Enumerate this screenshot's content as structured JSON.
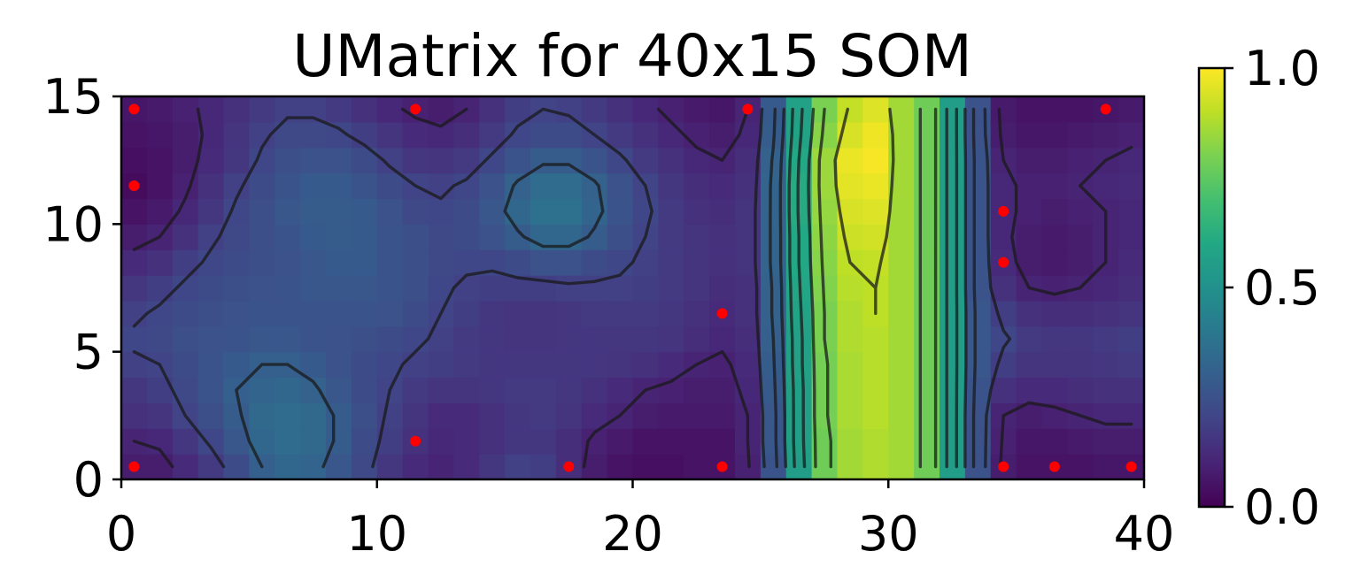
{
  "chart_data": {
    "type": "heatmap",
    "title": "UMatrix for 40x15 SOM",
    "xlabel": "",
    "ylabel": "",
    "grid_shape": [
      15,
      40
    ],
    "xlim": [
      0,
      40
    ],
    "ylim": [
      0,
      15
    ],
    "xticks": [
      0,
      10,
      20,
      30,
      40
    ],
    "yticks": [
      0,
      5,
      10,
      15
    ],
    "colorbar": {
      "ticks": [
        "0.0",
        "0.5",
        "1.0"
      ],
      "vmin": 0,
      "vmax": 1,
      "colormap": "viridis"
    },
    "grid": false,
    "contours": true,
    "marker_color": "#ff0000",
    "markers": [
      {
        "x": 0.5,
        "y": 14.5
      },
      {
        "x": 11.5,
        "y": 14.5
      },
      {
        "x": 24.5,
        "y": 14.5
      },
      {
        "x": 38.5,
        "y": 14.5
      },
      {
        "x": 0.5,
        "y": 11.5
      },
      {
        "x": 34.5,
        "y": 10.5
      },
      {
        "x": 34.5,
        "y": 8.5
      },
      {
        "x": 23.5,
        "y": 6.5
      },
      {
        "x": 11.5,
        "y": 1.5
      },
      {
        "x": 0.5,
        "y": 0.5
      },
      {
        "x": 17.5,
        "y": 0.5
      },
      {
        "x": 23.5,
        "y": 0.5
      },
      {
        "x": 34.5,
        "y": 0.5
      },
      {
        "x": 36.5,
        "y": 0.5
      },
      {
        "x": 39.5,
        "y": 0.5
      }
    ],
    "values": [
      [
        0.08,
        0.08,
        0.12,
        0.17,
        0.23,
        0.3,
        0.33,
        0.32,
        0.27,
        0.22,
        0.16,
        0.12,
        0.1,
        0.12,
        0.16,
        0.19,
        0.18,
        0.13,
        0.08,
        0.05,
        0.04,
        0.04,
        0.05,
        0.05,
        0.09,
        0.26,
        0.55,
        0.78,
        0.86,
        0.88,
        0.86,
        0.78,
        0.55,
        0.25,
        0.08,
        0.05,
        0.05,
        0.05,
        0.06,
        0.06
      ],
      [
        0.1,
        0.11,
        0.16,
        0.21,
        0.27,
        0.33,
        0.35,
        0.34,
        0.29,
        0.23,
        0.18,
        0.14,
        0.11,
        0.12,
        0.14,
        0.16,
        0.16,
        0.13,
        0.09,
        0.07,
        0.05,
        0.05,
        0.05,
        0.05,
        0.1,
        0.27,
        0.56,
        0.78,
        0.86,
        0.88,
        0.86,
        0.78,
        0.55,
        0.25,
        0.09,
        0.06,
        0.06,
        0.07,
        0.08,
        0.08
      ],
      [
        0.14,
        0.15,
        0.2,
        0.24,
        0.29,
        0.34,
        0.35,
        0.34,
        0.29,
        0.24,
        0.19,
        0.15,
        0.12,
        0.12,
        0.14,
        0.16,
        0.17,
        0.15,
        0.12,
        0.1,
        0.08,
        0.07,
        0.07,
        0.07,
        0.1,
        0.27,
        0.56,
        0.79,
        0.87,
        0.89,
        0.86,
        0.78,
        0.55,
        0.25,
        0.1,
        0.08,
        0.09,
        0.1,
        0.11,
        0.11
      ],
      [
        0.16,
        0.18,
        0.22,
        0.26,
        0.3,
        0.32,
        0.33,
        0.31,
        0.27,
        0.23,
        0.2,
        0.17,
        0.15,
        0.15,
        0.16,
        0.17,
        0.17,
        0.16,
        0.14,
        0.12,
        0.1,
        0.09,
        0.08,
        0.08,
        0.11,
        0.28,
        0.56,
        0.79,
        0.87,
        0.89,
        0.86,
        0.78,
        0.55,
        0.26,
        0.14,
        0.12,
        0.12,
        0.13,
        0.14,
        0.14
      ],
      [
        0.19,
        0.2,
        0.23,
        0.26,
        0.28,
        0.3,
        0.3,
        0.28,
        0.25,
        0.23,
        0.21,
        0.19,
        0.18,
        0.17,
        0.16,
        0.16,
        0.16,
        0.16,
        0.16,
        0.15,
        0.14,
        0.12,
        0.1,
        0.09,
        0.12,
        0.29,
        0.57,
        0.79,
        0.87,
        0.89,
        0.86,
        0.78,
        0.55,
        0.27,
        0.18,
        0.15,
        0.15,
        0.15,
        0.16,
        0.17
      ],
      [
        0.21,
        0.22,
        0.24,
        0.25,
        0.26,
        0.27,
        0.27,
        0.26,
        0.25,
        0.24,
        0.23,
        0.21,
        0.19,
        0.17,
        0.16,
        0.15,
        0.15,
        0.16,
        0.16,
        0.16,
        0.16,
        0.15,
        0.13,
        0.11,
        0.13,
        0.3,
        0.57,
        0.8,
        0.88,
        0.89,
        0.86,
        0.78,
        0.55,
        0.27,
        0.21,
        0.17,
        0.16,
        0.16,
        0.17,
        0.18
      ],
      [
        0.19,
        0.21,
        0.23,
        0.24,
        0.25,
        0.26,
        0.26,
        0.26,
        0.26,
        0.26,
        0.25,
        0.23,
        0.2,
        0.18,
        0.16,
        0.15,
        0.15,
        0.16,
        0.17,
        0.17,
        0.17,
        0.16,
        0.14,
        0.12,
        0.14,
        0.31,
        0.58,
        0.8,
        0.88,
        0.9,
        0.86,
        0.78,
        0.55,
        0.27,
        0.18,
        0.14,
        0.13,
        0.13,
        0.14,
        0.15
      ],
      [
        0.16,
        0.18,
        0.21,
        0.23,
        0.24,
        0.25,
        0.26,
        0.27,
        0.27,
        0.27,
        0.26,
        0.24,
        0.21,
        0.19,
        0.18,
        0.18,
        0.18,
        0.19,
        0.19,
        0.19,
        0.18,
        0.17,
        0.15,
        0.13,
        0.14,
        0.31,
        0.59,
        0.81,
        0.89,
        0.9,
        0.86,
        0.78,
        0.55,
        0.26,
        0.14,
        0.1,
        0.09,
        0.1,
        0.11,
        0.13
      ],
      [
        0.12,
        0.14,
        0.18,
        0.21,
        0.23,
        0.24,
        0.25,
        0.27,
        0.28,
        0.28,
        0.26,
        0.24,
        0.22,
        0.21,
        0.21,
        0.23,
        0.25,
        0.25,
        0.23,
        0.21,
        0.19,
        0.17,
        0.15,
        0.14,
        0.15,
        0.32,
        0.6,
        0.82,
        0.9,
        0.91,
        0.86,
        0.78,
        0.55,
        0.26,
        0.12,
        0.08,
        0.07,
        0.08,
        0.1,
        0.12
      ],
      [
        0.08,
        0.1,
        0.14,
        0.19,
        0.22,
        0.24,
        0.26,
        0.28,
        0.29,
        0.28,
        0.26,
        0.24,
        0.22,
        0.23,
        0.25,
        0.29,
        0.33,
        0.33,
        0.29,
        0.24,
        0.2,
        0.17,
        0.15,
        0.14,
        0.15,
        0.32,
        0.6,
        0.83,
        0.92,
        0.93,
        0.86,
        0.78,
        0.55,
        0.26,
        0.11,
        0.08,
        0.07,
        0.08,
        0.1,
        0.11
      ],
      [
        0.05,
        0.07,
        0.11,
        0.16,
        0.21,
        0.24,
        0.27,
        0.29,
        0.29,
        0.28,
        0.25,
        0.22,
        0.21,
        0.23,
        0.27,
        0.33,
        0.37,
        0.37,
        0.32,
        0.26,
        0.21,
        0.17,
        0.14,
        0.13,
        0.15,
        0.32,
        0.61,
        0.84,
        0.94,
        0.95,
        0.86,
        0.78,
        0.55,
        0.26,
        0.11,
        0.09,
        0.08,
        0.09,
        0.1,
        0.11
      ],
      [
        0.03,
        0.05,
        0.09,
        0.14,
        0.19,
        0.23,
        0.26,
        0.28,
        0.28,
        0.26,
        0.23,
        0.2,
        0.19,
        0.21,
        0.25,
        0.31,
        0.35,
        0.35,
        0.31,
        0.25,
        0.2,
        0.16,
        0.13,
        0.12,
        0.14,
        0.32,
        0.61,
        0.85,
        0.96,
        0.97,
        0.86,
        0.78,
        0.55,
        0.26,
        0.11,
        0.09,
        0.09,
        0.1,
        0.11,
        0.12
      ],
      [
        0.04,
        0.05,
        0.08,
        0.12,
        0.16,
        0.21,
        0.24,
        0.25,
        0.25,
        0.23,
        0.19,
        0.16,
        0.15,
        0.17,
        0.21,
        0.26,
        0.29,
        0.29,
        0.26,
        0.21,
        0.17,
        0.14,
        0.11,
        0.1,
        0.13,
        0.31,
        0.6,
        0.85,
        0.97,
        0.99,
        0.86,
        0.78,
        0.55,
        0.26,
        0.1,
        0.08,
        0.08,
        0.09,
        0.1,
        0.11
      ],
      [
        0.05,
        0.06,
        0.08,
        0.11,
        0.15,
        0.19,
        0.22,
        0.22,
        0.21,
        0.18,
        0.15,
        0.12,
        0.11,
        0.13,
        0.17,
        0.21,
        0.23,
        0.23,
        0.2,
        0.17,
        0.14,
        0.11,
        0.09,
        0.08,
        0.11,
        0.29,
        0.58,
        0.82,
        0.94,
        0.98,
        0.86,
        0.78,
        0.55,
        0.25,
        0.08,
        0.06,
        0.06,
        0.07,
        0.08,
        0.09
      ],
      [
        0.06,
        0.07,
        0.09,
        0.11,
        0.14,
        0.17,
        0.19,
        0.19,
        0.17,
        0.14,
        0.11,
        0.09,
        0.08,
        0.1,
        0.14,
        0.18,
        0.2,
        0.19,
        0.17,
        0.14,
        0.11,
        0.09,
        0.07,
        0.06,
        0.1,
        0.28,
        0.57,
        0.8,
        0.91,
        0.95,
        0.86,
        0.78,
        0.55,
        0.25,
        0.07,
        0.05,
        0.05,
        0.05,
        0.06,
        0.07
      ]
    ]
  }
}
